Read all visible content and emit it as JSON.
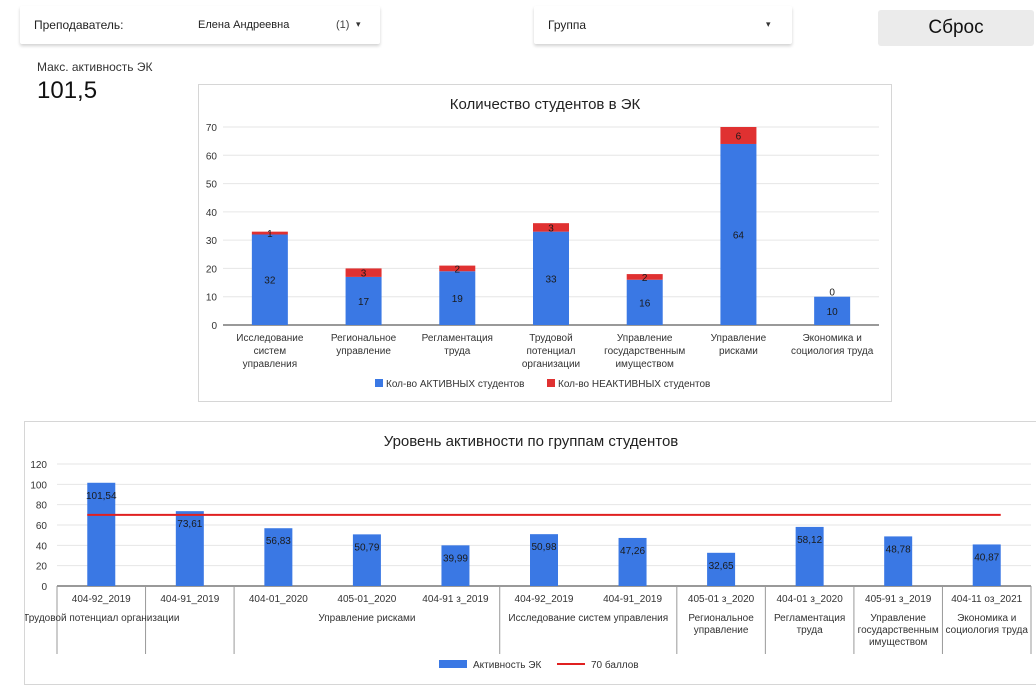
{
  "filters": {
    "teacher": {
      "label": "Преподаватель: ",
      "value": "Елена Андреевна",
      "count": "(1)",
      "caret": "▾"
    },
    "group": {
      "label": "Группа",
      "caret": "▾"
    },
    "reset_label": "Сброс"
  },
  "kpi": {
    "label": "Макс. активность ЭК",
    "value": "101,5"
  },
  "colors": {
    "active": "#3a78e4",
    "inactive": "#e03131",
    "threshold": "#e02020",
    "grid": "#e6e6e6",
    "axis": "#333333"
  },
  "chart_data": [
    {
      "type": "bar",
      "stacked": true,
      "title": "Количество студентов в ЭК",
      "categories": [
        [
          "Исследование",
          "систем",
          "управления"
        ],
        [
          "Региональное",
          "управление"
        ],
        [
          "Регламентация",
          "труда"
        ],
        [
          "Трудовой",
          "потенциал",
          "организации"
        ],
        [
          "Управление",
          "государственным",
          "имуществом"
        ],
        [
          "Управление",
          "рисками"
        ],
        [
          "Экономика и",
          "социология труда"
        ]
      ],
      "series": [
        {
          "name": "Кол-во АКТИВНЫХ студентов",
          "values": [
            32,
            17,
            19,
            33,
            16,
            64,
            10
          ]
        },
        {
          "name": "Кол-во НЕАКТИВНЫХ студентов",
          "values": [
            1,
            3,
            2,
            3,
            2,
            6,
            0
          ]
        }
      ],
      "ylim": [
        0,
        70
      ],
      "yticks": [
        0,
        10,
        20,
        30,
        40,
        50,
        60,
        70
      ],
      "grid": true,
      "legend": "bottom"
    },
    {
      "type": "bar",
      "title": "Уровень активности по группам студентов",
      "x": [
        "404-92_2019",
        "404-91_2019",
        "404-01_2020",
        "405-01_2020",
        "404-91 з_2019",
        "404-92_2019",
        "404-91_2019",
        "405-01 з_2020",
        "404-01 з_2020",
        "405-91 з_2019",
        "404-11 оз_2021"
      ],
      "values": [
        101.54,
        73.61,
        56.83,
        50.79,
        39.99,
        50.98,
        47.26,
        32.65,
        58.12,
        48.78,
        40.87
      ],
      "value_labels": [
        "101,54",
        "73,61",
        "56,83",
        "50,79",
        "39,99",
        "50,98",
        "47,26",
        "32,65",
        "58,12",
        "48,78",
        "40,87"
      ],
      "groups": [
        {
          "label": [
            "Трудовой потенциал организации"
          ],
          "span": [
            0,
            0
          ]
        },
        {
          "label": [],
          "span": [
            1,
            1
          ]
        },
        {
          "label": [
            "Управление рисками"
          ],
          "span": [
            2,
            4
          ]
        },
        {
          "label": [
            "Исследование систем управления"
          ],
          "span": [
            5,
            6
          ]
        },
        {
          "label": [
            "Региональное",
            "управление"
          ],
          "span": [
            7,
            7
          ]
        },
        {
          "label": [
            "Регламентация",
            "труда"
          ],
          "span": [
            8,
            8
          ]
        },
        {
          "label": [
            "Управление",
            "государственным",
            "имуществом"
          ],
          "span": [
            9,
            9
          ]
        },
        {
          "label": [
            "Экономика и",
            "социология труда"
          ],
          "span": [
            10,
            10
          ]
        }
      ],
      "series": [
        {
          "name": "Активность ЭК"
        },
        {
          "name": "70 баллов",
          "value": 70,
          "kind": "line"
        }
      ],
      "ylim": [
        0,
        120
      ],
      "yticks": [
        0,
        20,
        40,
        60,
        80,
        100,
        120
      ],
      "grid": true,
      "legend": "bottom"
    }
  ]
}
